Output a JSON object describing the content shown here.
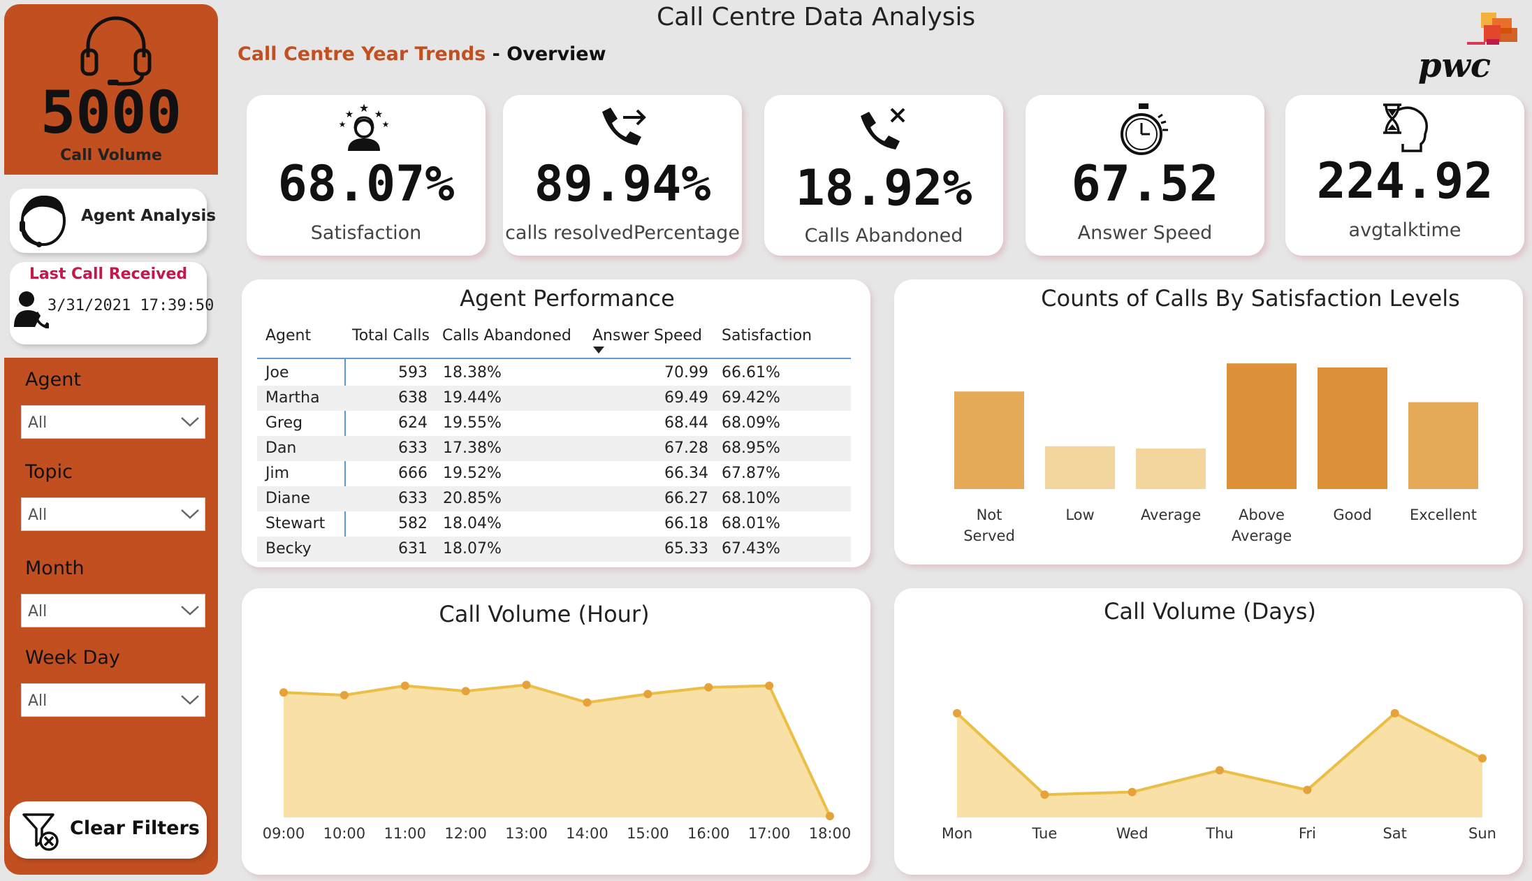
{
  "header": {
    "title": "Call Centre Data Analysis",
    "subtitle_main": "Call Centre Year Trends",
    "subtitle_sep": " - ",
    "subtitle_page": "Overview",
    "logo_text": "pwc"
  },
  "sidebar": {
    "call_volume": {
      "value": "5000",
      "label": "Call Volume",
      "icon": "headset-icon"
    },
    "agent_analysis": {
      "label": "Agent Analysis",
      "icon": "agent-avatar-icon"
    },
    "last_call": {
      "title": "Last Call Received",
      "value": "3/31/2021 17:39:50",
      "icon": "caller-icon"
    },
    "filters": [
      {
        "label": "Agent",
        "value": "All"
      },
      {
        "label": "Topic",
        "value": "All"
      },
      {
        "label": "Month",
        "value": "All"
      },
      {
        "label": "Week Day",
        "value": "All"
      }
    ],
    "clear_filters": {
      "label": "Clear Filters",
      "icon": "filter-clear-icon"
    }
  },
  "kpis": [
    {
      "value": "68.07%",
      "label": "Satisfaction",
      "icon": "satisfaction-stars-icon"
    },
    {
      "value": "89.94%",
      "label": "calls resolvedPercentage",
      "icon": "phone-forward-icon"
    },
    {
      "value": "18.92%",
      "label": "Calls Abandoned",
      "icon": "phone-missed-icon"
    },
    {
      "value": "67.52",
      "label": "Answer Speed",
      "icon": "stopwatch-icon"
    },
    {
      "value": "224.92",
      "label": "avgtalktime",
      "icon": "hourglass-head-icon"
    }
  ],
  "agent_performance": {
    "title": "Agent Performance",
    "columns": [
      "Agent",
      "Total Calls",
      "Calls Abandoned",
      "Answer Speed",
      "Satisfaction"
    ],
    "rows": [
      [
        "Joe",
        "593",
        "18.38%",
        "70.99",
        "66.61%"
      ],
      [
        "Martha",
        "638",
        "19.44%",
        "69.49",
        "69.42%"
      ],
      [
        "Greg",
        "624",
        "19.55%",
        "68.44",
        "68.09%"
      ],
      [
        "Dan",
        "633",
        "17.38%",
        "67.28",
        "68.95%"
      ],
      [
        "Jim",
        "666",
        "19.52%",
        "66.34",
        "67.87%"
      ],
      [
        "Diane",
        "633",
        "20.85%",
        "66.27",
        "68.10%"
      ],
      [
        "Stewart",
        "582",
        "18.04%",
        "66.18",
        "68.01%"
      ],
      [
        "Becky",
        "631",
        "18.07%",
        "65.33",
        "67.43%"
      ]
    ]
  },
  "colors": {
    "accent": "#c24f20",
    "bar_dark": "#de9038",
    "bar_mid": "#e4aa57",
    "bar_light": "#f3d59e",
    "area_fill": "#f8e0a6",
    "line": "#ebbe45"
  },
  "chart_data": [
    {
      "type": "bar",
      "title": "Counts of Calls By Satisfaction Levels",
      "categories": [
        "Not Served",
        "Low",
        "Average",
        "Above Average",
        "Good",
        "Excellent"
      ],
      "values": [
        838,
        368,
        348,
        1079,
        1044,
        746
      ],
      "ylim": [
        0,
        1200
      ]
    },
    {
      "type": "area",
      "title": "Call Volume (Hour)",
      "categories": [
        "09:00",
        "10:00",
        "11:00",
        "12:00",
        "13:00",
        "14:00",
        "15:00",
        "16:00",
        "17:00",
        "18:00"
      ],
      "values": [
        560,
        548,
        590,
        566,
        594,
        515,
        553,
        583,
        590,
        6
      ],
      "ylim": [
        0,
        720
      ]
    },
    {
      "type": "area",
      "title": "Call Volume (Days)",
      "categories": [
        "Mon",
        "Tue",
        "Wed",
        "Thu",
        "Fri",
        "Sat",
        "Sun"
      ],
      "values": [
        791,
        634,
        639,
        681,
        643,
        791,
        704
      ],
      "ylim": [
        590,
        900
      ]
    }
  ]
}
